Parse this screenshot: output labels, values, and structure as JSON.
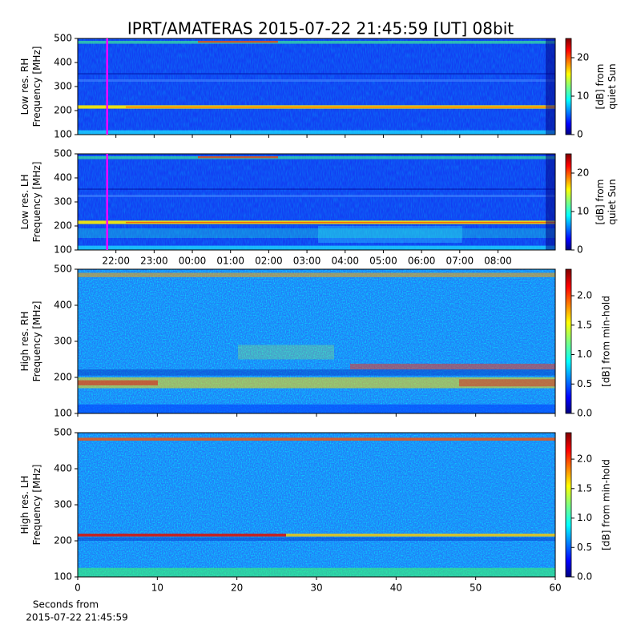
{
  "title": "IPRT/AMATERAS 2015-07-22 21:45:59 [UT]   08bit",
  "chart_data": [
    {
      "type": "heatmap",
      "ylabel": [
        "Low res. RH",
        "Frequency [MHz]"
      ],
      "ylim": [
        100,
        500
      ],
      "yticks": [
        100,
        200,
        300,
        400,
        500
      ],
      "xlim": [
        21.0,
        33.5
      ],
      "xticks": [
        22,
        23,
        24,
        25,
        26,
        27,
        28,
        29,
        30,
        31,
        32
      ],
      "markers": [
        21.77
      ],
      "marker_color": "#ff00ff",
      "colorbar_label": [
        "[dB] from",
        "quiet Sun"
      ],
      "clim": [
        0,
        25
      ],
      "cticks": [
        0,
        10,
        20
      ]
    },
    {
      "type": "heatmap",
      "ylabel": [
        "Low res. LH",
        "Frequency [MHz]"
      ],
      "ylim": [
        100,
        500
      ],
      "yticks": [
        100,
        200,
        300,
        400,
        500
      ],
      "xlim": [
        21.0,
        33.5
      ],
      "xticks": [
        {
          "value": 22,
          "label": "22:00"
        },
        {
          "value": 23,
          "label": "23:00"
        },
        {
          "value": 24,
          "label": "00:00"
        },
        {
          "value": 25,
          "label": "01:00"
        },
        {
          "value": 26,
          "label": "02:00"
        },
        {
          "value": 27,
          "label": "03:00"
        },
        {
          "value": 28,
          "label": "04:00"
        },
        {
          "value": 29,
          "label": "05:00"
        },
        {
          "value": 30,
          "label": "06:00"
        },
        {
          "value": 31,
          "label": "07:00"
        },
        {
          "value": 32,
          "label": "08:00"
        }
      ],
      "markers": [
        21.77
      ],
      "marker_color": "#ff00ff",
      "colorbar_label": [
        "[dB] from",
        "quiet Sun"
      ],
      "clim": [
        0,
        25
      ],
      "cticks": [
        0,
        10,
        20
      ]
    },
    {
      "type": "heatmap",
      "ylabel": [
        "High res. RH",
        "Frequency [MHz]"
      ],
      "ylim": [
        100,
        500
      ],
      "yticks": [
        100,
        200,
        300,
        400,
        500
      ],
      "xlim": [
        0,
        60
      ],
      "xticks": [
        0,
        10,
        20,
        30,
        40,
        50,
        60
      ],
      "colorbar_label": [
        "[dB] from min-hold"
      ],
      "clim": [
        0,
        2.45
      ],
      "cticks": [
        {
          "value": 0,
          "label": "0.0"
        },
        0.5,
        {
          "value": 1,
          "label": "1.0"
        },
        1.5,
        {
          "value": 2,
          "label": "2.0"
        }
      ]
    },
    {
      "type": "heatmap",
      "ylabel": [
        "High res. LH",
        "Frequency [MHz]"
      ],
      "ylim": [
        100,
        500
      ],
      "yticks": [
        100,
        200,
        300,
        400,
        500
      ],
      "xlim": [
        0,
        60
      ],
      "xticks": [
        0,
        10,
        20,
        30,
        40,
        50,
        60
      ],
      "xlabel": [
        "Seconds from",
        "2015-07-22 21:45:59"
      ],
      "colorbar_label": [
        "[dB] from min-hold"
      ],
      "clim": [
        0,
        2.45
      ],
      "cticks": [
        {
          "value": 0,
          "label": "0.0"
        },
        0.5,
        {
          "value": 1,
          "label": "1.0"
        },
        1.5,
        {
          "value": 2,
          "label": "2.0"
        }
      ]
    }
  ]
}
